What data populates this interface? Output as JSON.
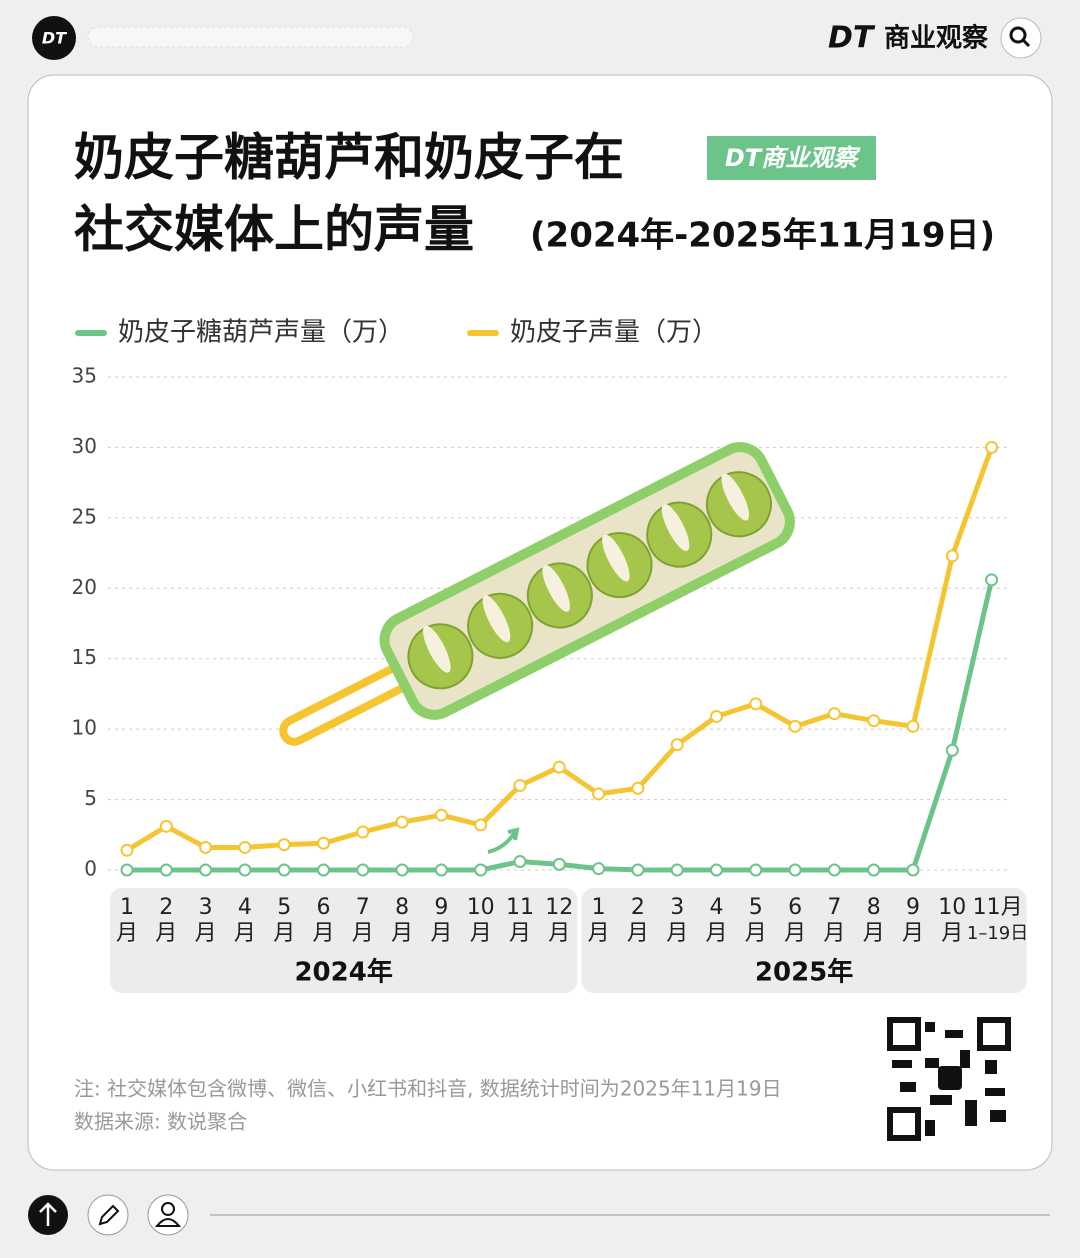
{
  "app": {
    "logo": "DT",
    "brand": "商业观察"
  },
  "chart_data": {
    "type": "line",
    "title": [
      "奶皮子糖葫芦和奶皮子在",
      "社交媒体上的声量"
    ],
    "subtitle": "(2024年-2025年11月19日)",
    "badge": "DT商业观察",
    "categories": [
      "1月",
      "2月",
      "3月",
      "4月",
      "5月",
      "6月",
      "7月",
      "8月",
      "9月",
      "10月",
      "11月",
      "12月",
      "1月",
      "2月",
      "3月",
      "4月",
      "5月",
      "6月",
      "7月",
      "8月",
      "9月",
      "10月",
      "11月1–19日"
    ],
    "year_labels": [
      "2024年",
      "2025年"
    ],
    "series": [
      {
        "name": "奶皮子糖葫芦声量（万）",
        "color": "#6cc48a",
        "values": [
          0,
          0,
          0,
          0,
          0,
          0,
          0,
          0,
          0,
          0,
          0.6,
          0.4,
          0.1,
          0,
          0,
          0,
          0,
          0,
          0,
          0,
          0,
          8.5,
          20.6
        ]
      },
      {
        "name": "奶皮子声量（万）",
        "color": "#f5c531",
        "values": [
          1.4,
          3.1,
          1.6,
          1.6,
          1.8,
          1.9,
          2.7,
          3.4,
          3.9,
          3.2,
          6.0,
          7.3,
          5.4,
          5.8,
          8.9,
          10.9,
          11.8,
          10.2,
          11.1,
          10.6,
          10.2,
          22.3,
          30.0
        ]
      }
    ],
    "ylim": [
      0,
      35
    ],
    "yticks": [
      0,
      5,
      10,
      15,
      20,
      25,
      30,
      35
    ],
    "grid": true,
    "notes": [
      "注: 社交媒体包含微博、微信、小红书和抖音, 数据统计时间为2025年11月19日",
      "数据来源: 数说聚合"
    ]
  }
}
